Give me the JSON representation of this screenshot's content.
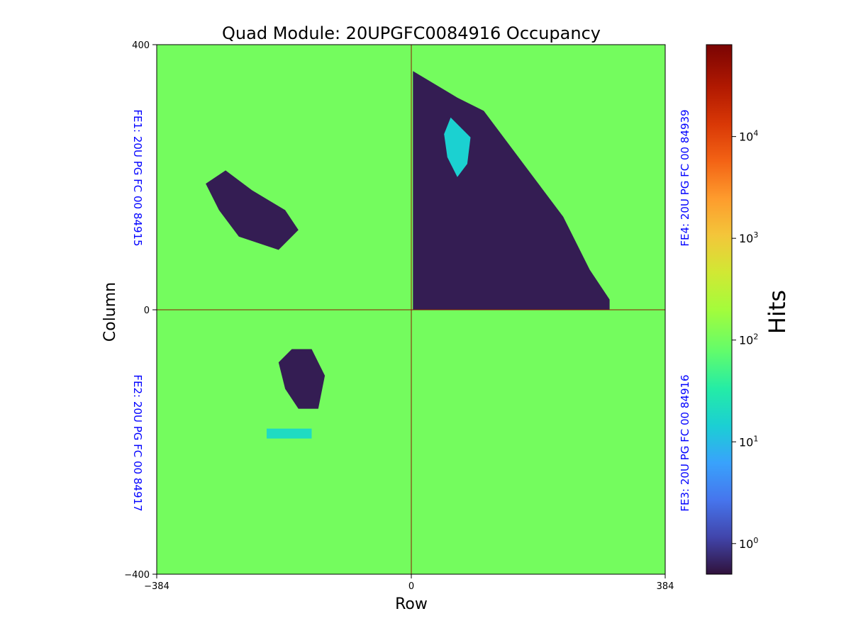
{
  "chart_data": {
    "type": "heatmap",
    "title": "Quad Module: 20UPGFC0084916 Occupancy",
    "xlabel": "Row",
    "ylabel": "Column",
    "xlim": [
      -384,
      384
    ],
    "ylim": [
      -400,
      400
    ],
    "x_ticks": [
      -384,
      0,
      384
    ],
    "y_ticks": [
      -400,
      0,
      400
    ],
    "x_tick_labels": [
      "−384",
      "0",
      "384"
    ],
    "y_tick_labels": [
      "−400",
      "0",
      "400"
    ],
    "background_hits": 100,
    "scale": "log",
    "colorbar": {
      "label": "Hits",
      "colormap": "turbo",
      "range": [
        0.5,
        80000
      ],
      "ticks": [
        {
          "value": 1,
          "base": "10",
          "exp": "0"
        },
        {
          "value": 10,
          "base": "10",
          "exp": "1"
        },
        {
          "value": 100,
          "base": "10",
          "exp": "2"
        },
        {
          "value": 1000,
          "base": "10",
          "exp": "3"
        },
        {
          "value": 10000,
          "base": "10",
          "exp": "4"
        }
      ]
    },
    "chips": [
      {
        "id": "FE1",
        "label": "FE1: 20U PG FC 00 84915",
        "quadrant": "top-left"
      },
      {
        "id": "FE2",
        "label": "FE2: 20U PG FC 00 84917",
        "quadrant": "bottom-left"
      },
      {
        "id": "FE3",
        "label": "FE3: 20U PG FC 00 84916",
        "quadrant": "bottom-right"
      },
      {
        "id": "FE4",
        "label": "FE4: 20U PG FC 00 84939",
        "quadrant": "top-right"
      }
    ],
    "low_occupancy_regions": [
      {
        "chip": "FE4",
        "hits": 0.6,
        "polygon": [
          [
            3,
            360
          ],
          [
            20,
            350
          ],
          [
            70,
            320
          ],
          [
            110,
            300
          ],
          [
            140,
            260
          ],
          [
            170,
            220
          ],
          [
            230,
            140
          ],
          [
            270,
            60
          ],
          [
            300,
            15
          ],
          [
            300,
            0
          ],
          [
            3,
            0
          ]
        ]
      },
      {
        "chip": "FE1",
        "hits": 0.6,
        "polygon": [
          [
            -310,
            190
          ],
          [
            -290,
            150
          ],
          [
            -260,
            110
          ],
          [
            -200,
            90
          ],
          [
            -170,
            120
          ],
          [
            -190,
            150
          ],
          [
            -240,
            180
          ],
          [
            -280,
            210
          ]
        ]
      },
      {
        "chip": "FE2",
        "hits": 0.6,
        "polygon": [
          [
            -200,
            -80
          ],
          [
            -180,
            -60
          ],
          [
            -150,
            -60
          ],
          [
            -130,
            -100
          ],
          [
            -140,
            -150
          ],
          [
            -170,
            -150
          ],
          [
            -190,
            -120
          ]
        ]
      }
    ],
    "elevated_regions": [
      {
        "chip": "FE4",
        "hits": 15,
        "polygon": [
          [
            60,
            290
          ],
          [
            90,
            260
          ],
          [
            85,
            220
          ],
          [
            70,
            200
          ],
          [
            55,
            230
          ],
          [
            50,
            265
          ]
        ]
      },
      {
        "chip": "FE2",
        "hits": 20,
        "polygon": [
          [
            -218,
            -180
          ],
          [
            -150,
            -180
          ],
          [
            -150,
            -195
          ],
          [
            -218,
            -195
          ]
        ]
      }
    ],
    "gridlines": "crosshair at x=0 and y=0",
    "legend": "none"
  }
}
